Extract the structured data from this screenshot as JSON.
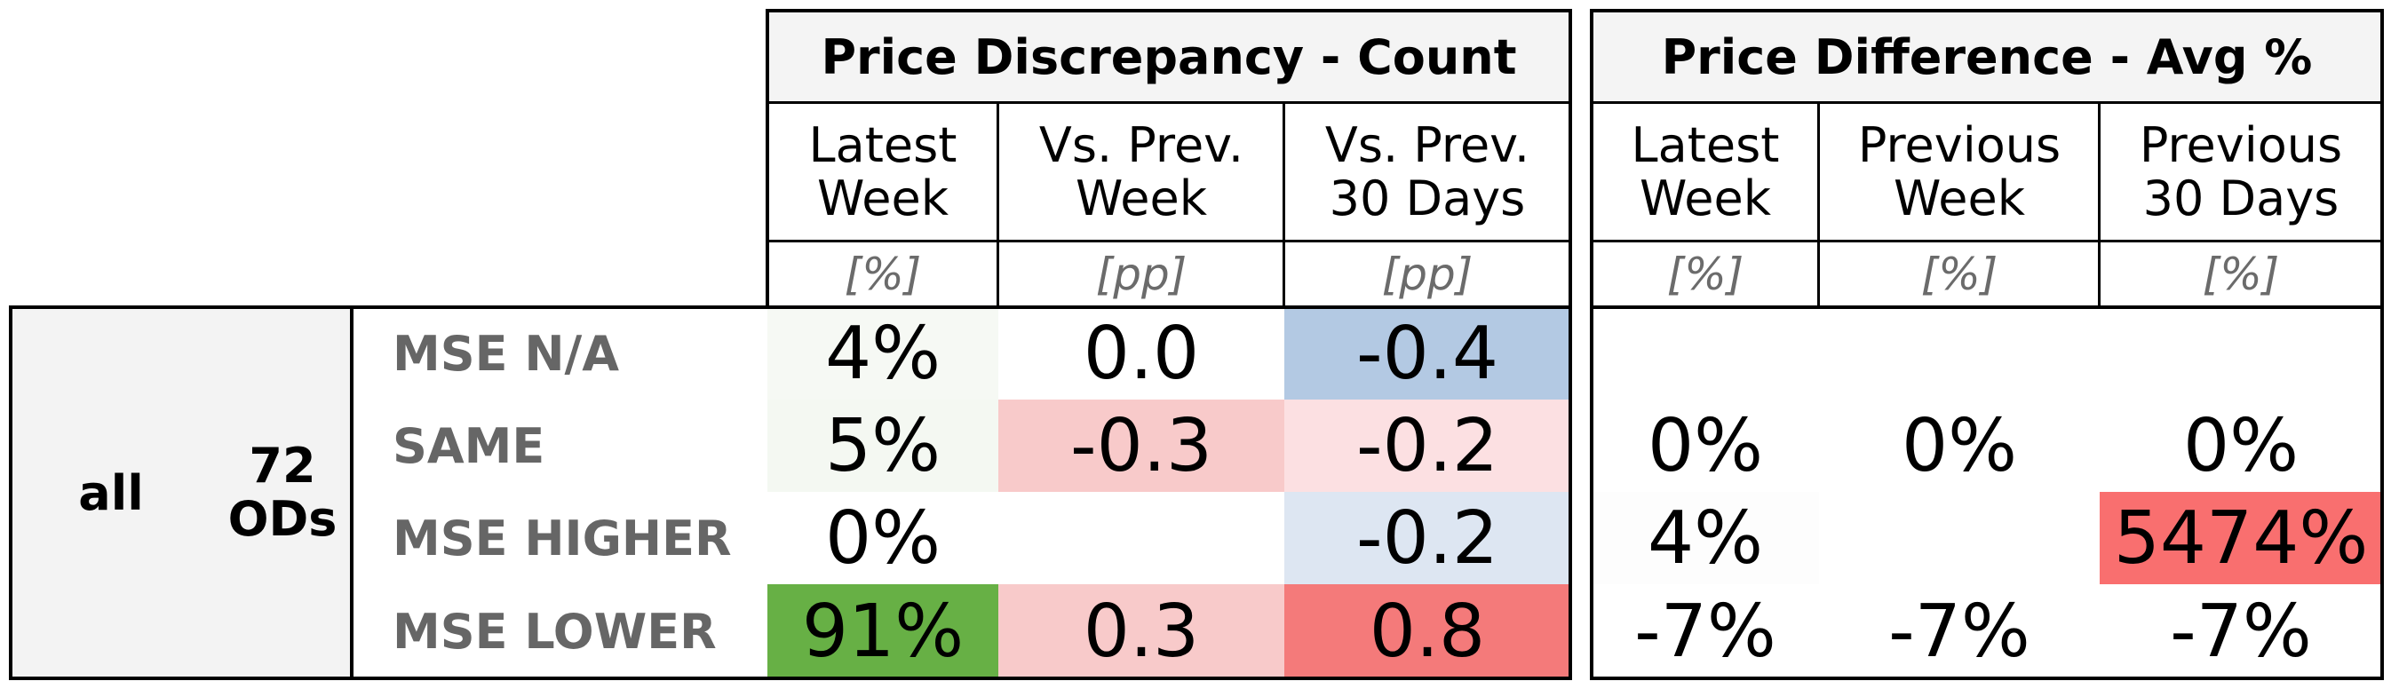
{
  "groups": [
    {
      "title": "Price Discrepancy - Count"
    },
    {
      "title": "Price Difference - Avg %"
    }
  ],
  "columns": [
    {
      "label": "Latest\nWeek",
      "unit": "[%]"
    },
    {
      "label": "Vs. Prev.\nWeek",
      "unit": "[pp]"
    },
    {
      "label": "Vs. Prev.\n30 Days",
      "unit": "[pp]"
    },
    {
      "label": "Latest\nWeek",
      "unit": "[%]"
    },
    {
      "label": "Previous\nWeek",
      "unit": "[%]"
    },
    {
      "label": "Previous\n30 Days",
      "unit": "[%]"
    }
  ],
  "segment": {
    "name": "all",
    "count": "72\nODs"
  },
  "rows": [
    {
      "label": "MSE N/A",
      "values": [
        "4%",
        "0.0",
        "-0.4",
        "",
        "",
        ""
      ]
    },
    {
      "label": "SAME",
      "values": [
        "5%",
        "-0.3",
        "-0.2",
        "0%",
        "0%",
        "0%"
      ]
    },
    {
      "label": "MSE HIGHER",
      "values": [
        "0%",
        "",
        "-0.2",
        "4%",
        "",
        "5474%"
      ]
    },
    {
      "label": "MSE LOWER",
      "values": [
        "91%",
        "0.3",
        "0.8",
        "-7%",
        "-7%",
        "-7%"
      ]
    }
  ],
  "cell_colors": [
    [
      "#f6f9f4",
      "#ffffff",
      "#b3c9e3",
      "#ffffff",
      "#ffffff",
      "#ffffff"
    ],
    [
      "#f4f8f2",
      "#f8caca",
      "#fce0e2",
      "#ffffff",
      "#ffffff",
      "#ffffff"
    ],
    [
      "#ffffff",
      "#ffffff",
      "#dde6f2",
      "#fdfdfd",
      "#ffffff",
      "#f96f6f"
    ],
    [
      "#67b045",
      "#f8caca",
      "#f47a7a",
      "#ffffff",
      "#ffffff",
      "#ffffff"
    ]
  ]
}
